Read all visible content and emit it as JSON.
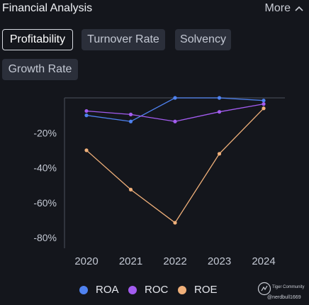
{
  "header": {
    "title": "Financial Analysis",
    "more_label": "More"
  },
  "tabs": [
    {
      "label": "Profitability",
      "active": true
    },
    {
      "label": "Turnover Rate",
      "active": false
    },
    {
      "label": "Solvency",
      "active": false
    },
    {
      "label": "Growth Rate",
      "active": false
    }
  ],
  "chart_data": {
    "type": "line",
    "title": "",
    "xlabel": "",
    "ylabel": "",
    "categories": [
      "2020",
      "2021",
      "2022",
      "2023",
      "2024"
    ],
    "yticks": [
      -20,
      -40,
      -60,
      -80
    ],
    "ytick_labels": [
      "-20%",
      "-40%",
      "-60%",
      "-80%"
    ],
    "ylim": [
      -85,
      0
    ],
    "grid": false,
    "legend_position": "bottom",
    "series": [
      {
        "name": "ROA",
        "color": "#4f82f0",
        "values": [
          -10,
          -13.5,
          0,
          0,
          -1.5
        ]
      },
      {
        "name": "ROC",
        "color": "#a35cf0",
        "values": [
          -7.5,
          -9.5,
          -13.5,
          -8,
          -3.5
        ]
      },
      {
        "name": "ROE",
        "color": "#f0b07a",
        "values": [
          -30,
          -52.5,
          -71.5,
          -32,
          -6
        ]
      }
    ]
  },
  "watermark": {
    "brand": "Tiger Community",
    "handle": "@nerdbull1669"
  }
}
